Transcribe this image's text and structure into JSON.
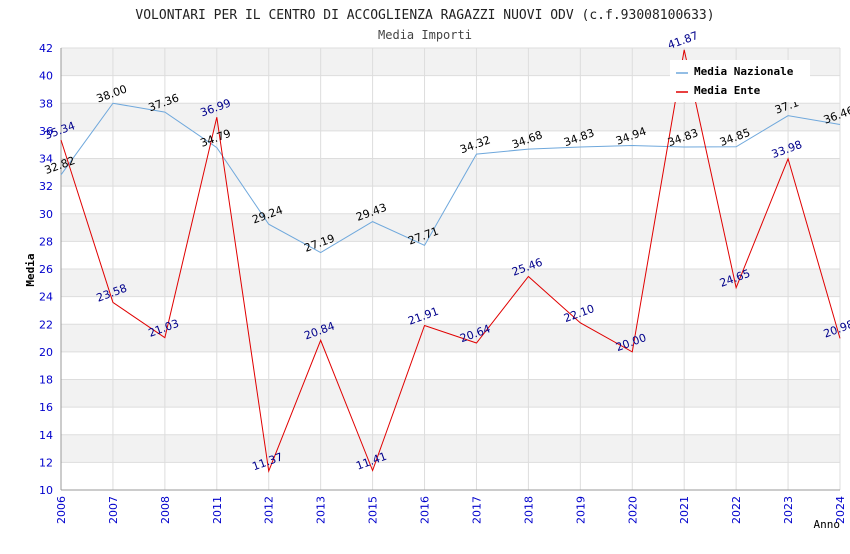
{
  "chart_data": {
    "type": "line",
    "title": "VOLONTARI PER IL CENTRO DI ACCOGLIENZA RAGAZZI NUOVI ODV (c.f.93008100633)",
    "subtitle": "Media Importi",
    "xlabel": "Anno",
    "ylabel": "Media",
    "ylim": [
      10,
      42
    ],
    "yticks": [
      "10",
      "12",
      "14",
      "16",
      "18",
      "20",
      "22",
      "24",
      "26",
      "28",
      "30",
      "32",
      "34",
      "36",
      "38",
      "40",
      "42"
    ],
    "categories": [
      "2006",
      "2007",
      "2008",
      "2011",
      "2012",
      "2013",
      "2015",
      "2016",
      "2017",
      "2018",
      "2019",
      "2020",
      "2021",
      "2022",
      "2023",
      "2024"
    ],
    "series": [
      {
        "name": "Media Nazionale",
        "color": "#6fa8dc",
        "label_color": "#000000",
        "values": [
          32.82,
          38.0,
          37.36,
          34.79,
          29.24,
          27.19,
          29.43,
          27.71,
          34.32,
          34.68,
          34.83,
          34.94,
          34.83,
          34.85,
          37.1,
          36.46
        ],
        "labels": [
          "32.82",
          "38.00",
          "37.36",
          "34.79",
          "29.24",
          "27.19",
          "29.43",
          "27.71",
          "34.32",
          "34.68",
          "34.83",
          "34.94",
          "34.83",
          "34.85",
          "37.1",
          "36.46"
        ]
      },
      {
        "name": "Media Ente",
        "color": "#e00000",
        "label_color": "#00008b",
        "values": [
          35.34,
          23.58,
          21.03,
          36.99,
          11.37,
          20.84,
          11.41,
          21.91,
          20.64,
          25.46,
          22.1,
          20.0,
          41.87,
          24.65,
          33.98,
          20.98
        ],
        "labels": [
          "35.34",
          "23.58",
          "21.03",
          "36.99",
          "11.37",
          "20.84",
          "11.41",
          "21.91",
          "20.64",
          "25.46",
          "22.10",
          "20.00",
          "41.87",
          "24.65",
          "33.98",
          "20.98"
        ]
      }
    ],
    "legend_position": "top-right",
    "grid": true
  }
}
